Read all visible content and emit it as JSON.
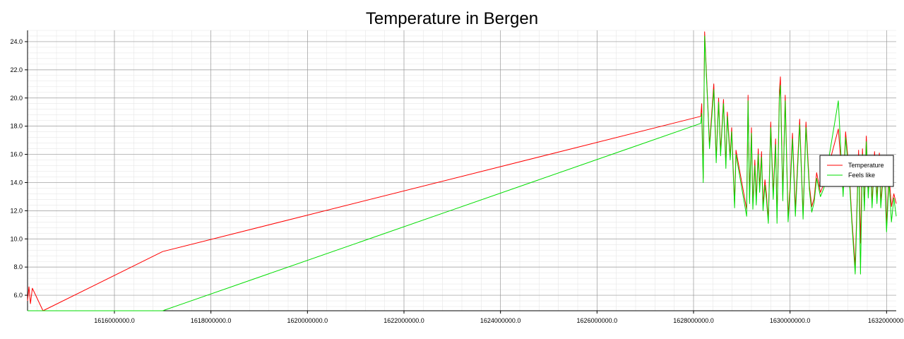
{
  "chart_data": {
    "type": "line",
    "title": "Temperature in Bergen",
    "xlabel": "",
    "ylabel": "",
    "xlim": [
      1614200000,
      1632200000
    ],
    "ylim": [
      4.9,
      24.8
    ],
    "x_ticks": [
      1616000000,
      1618000000,
      1620000000,
      1622000000,
      1624000000,
      1626000000,
      1628000000,
      1630000000,
      1632000000
    ],
    "x_tick_labels": [
      "1616000000.0",
      "1618000000.0",
      "1620000000.0",
      "1622000000.0",
      "1624000000.0",
      "1626000000.0",
      "1628000000.0",
      "1630000000.0",
      "1632000000."
    ],
    "y_ticks": [
      6,
      8,
      10,
      12,
      14,
      16,
      18,
      20,
      22,
      24
    ],
    "y_tick_labels": [
      "6.0",
      "8.0",
      "10.0",
      "12.0",
      "14.0",
      "16.0",
      "18.0",
      "20.0",
      "22.0",
      "24.0"
    ],
    "grid": true,
    "legend_position": "right",
    "series": [
      {
        "name": "Temperature",
        "color": "#ff0000",
        "x": [
          1614200000,
          1614230000,
          1614260000,
          1614300000,
          1614520000,
          1617000000,
          1628150000,
          1628170000,
          1628200000,
          1628230000,
          1628300000,
          1628330000,
          1628420000,
          1628470000,
          1628520000,
          1628560000,
          1628620000,
          1628670000,
          1628700000,
          1628760000,
          1628790000,
          1628850000,
          1628880000,
          1629100000,
          1629130000,
          1629160000,
          1629200000,
          1629230000,
          1629270000,
          1629300000,
          1629340000,
          1629370000,
          1629410000,
          1629440000,
          1629480000,
          1629510000,
          1629550000,
          1629600000,
          1629650000,
          1629700000,
          1629730000,
          1629780000,
          1629800000,
          1629850000,
          1629900000,
          1629960000,
          1630000000,
          1630050000,
          1630110000,
          1630200000,
          1630270000,
          1630330000,
          1630400000,
          1630450000,
          1630500000,
          1630550000,
          1630630000,
          1630700000,
          1631000000,
          1631100000,
          1631150000,
          1631230000,
          1631280000,
          1631350000,
          1631420000,
          1631460000,
          1631500000,
          1631540000,
          1631580000,
          1631620000,
          1631660000,
          1631700000,
          1631750000,
          1631800000,
          1631850000,
          1631880000,
          1631950000,
          1632000000,
          1632050000,
          1632100000,
          1632150000,
          1632200000
        ],
        "y": [
          5.6,
          6.6,
          5.4,
          6.5,
          4.9,
          9.1,
          18.7,
          19.6,
          14.3,
          24.7,
          19.2,
          16.7,
          21.0,
          15.7,
          20.0,
          16.2,
          19.9,
          15.3,
          19.0,
          15.9,
          17.9,
          12.5,
          16.3,
          12.1,
          20.2,
          12.9,
          17.9,
          12.5,
          15.6,
          12.8,
          16.4,
          13.7,
          16.2,
          12.4,
          14.2,
          13.2,
          11.3,
          18.3,
          13.2,
          17.1,
          11.5,
          20.5,
          21.5,
          13.1,
          20.2,
          11.6,
          13.7,
          17.5,
          12.1,
          18.5,
          11.7,
          18.3,
          13.8,
          12.3,
          12.9,
          14.7,
          13.3,
          13.9,
          17.8,
          13.4,
          17.6,
          14.5,
          11.5,
          8.1,
          16.3,
          9.7,
          16.4,
          12.4,
          17.3,
          13.3,
          15.9,
          12.6,
          16.2,
          12.9,
          16.1,
          12.6,
          15.8,
          11.0,
          14.5,
          12.3,
          13.2,
          12.5
        ]
      },
      {
        "name": "Feels like",
        "color": "#00dd00",
        "x": [
          1614200000,
          1617000000,
          1628150000,
          1628170000,
          1628200000,
          1628230000,
          1628300000,
          1628330000,
          1628420000,
          1628470000,
          1628520000,
          1628560000,
          1628620000,
          1628670000,
          1628700000,
          1628760000,
          1628790000,
          1628850000,
          1628880000,
          1629100000,
          1629130000,
          1629160000,
          1629200000,
          1629230000,
          1629270000,
          1629300000,
          1629340000,
          1629370000,
          1629410000,
          1629440000,
          1629480000,
          1629510000,
          1629550000,
          1629600000,
          1629650000,
          1629700000,
          1629730000,
          1629780000,
          1629800000,
          1629850000,
          1629900000,
          1629960000,
          1630000000,
          1630050000,
          1630110000,
          1630200000,
          1630270000,
          1630330000,
          1630400000,
          1630450000,
          1630500000,
          1630550000,
          1630630000,
          1630700000,
          1631000000,
          1631100000,
          1631150000,
          1631230000,
          1631280000,
          1631350000,
          1631420000,
          1631460000,
          1631500000,
          1631540000,
          1631580000,
          1631620000,
          1631660000,
          1631700000,
          1631750000,
          1631800000,
          1631850000,
          1631880000,
          1631950000,
          1632000000,
          1632050000,
          1632100000,
          1632150000,
          1632200000
        ],
        "y": [
          4.9,
          4.9,
          18.2,
          18.9,
          14.0,
          24.4,
          19.0,
          16.4,
          20.6,
          15.4,
          19.7,
          15.9,
          19.6,
          15.0,
          18.7,
          15.6,
          17.6,
          12.2,
          16.0,
          11.6,
          19.8,
          12.5,
          17.5,
          12.1,
          15.2,
          12.4,
          16.0,
          13.3,
          15.8,
          12.0,
          13.8,
          12.8,
          11.1,
          17.9,
          12.8,
          16.7,
          11.1,
          20.0,
          20.9,
          12.7,
          19.8,
          11.2,
          13.3,
          17.1,
          11.6,
          18.1,
          11.4,
          17.9,
          13.5,
          11.9,
          12.6,
          14.3,
          13.0,
          13.6,
          19.8,
          13.0,
          17.2,
          14.1,
          11.2,
          7.5,
          15.9,
          7.5,
          16.0,
          12.0,
          16.9,
          12.9,
          15.5,
          12.2,
          15.8,
          12.5,
          15.7,
          12.2,
          15.4,
          10.5,
          14.1,
          11.2,
          12.9,
          11.6
        ]
      }
    ]
  }
}
